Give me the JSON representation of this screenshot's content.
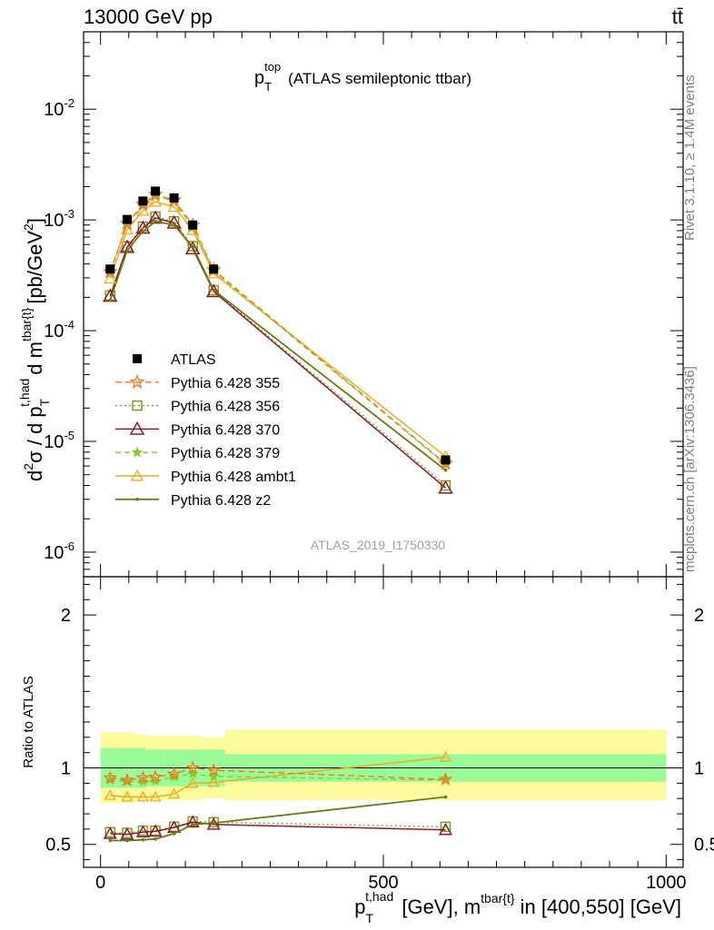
{
  "header": {
    "beam": "13000 GeV pp",
    "process": "tt̄"
  },
  "main_title": {
    "base": "p",
    "sub": "T",
    "sup": "top",
    "rest": "(ATLAS semileptonic ttbar)"
  },
  "side_labels": {
    "rivet": "Rivet 3.1.10, ≥ 1.4M events",
    "mcplots": "mcplots.cern.ch [arXiv:1306.3436]"
  },
  "analysis_id": "ATLAS_2019_I1750330",
  "colors": {
    "data": "#000000",
    "p355": "#ff6f1e",
    "p356": "#7d9e1e",
    "p370": "#8b1a2a",
    "p379": "#7ecf2e",
    "ambt1": "#f5a81e",
    "z2": "#6f7a14",
    "band_inner": "#98fb98",
    "band_outer": "#fbfb9b"
  },
  "chart_data": [
    {
      "type": "scatter",
      "name": "main",
      "title": "p_T^top (ATLAS semileptonic ttbar)",
      "xlabel": "p_T^{t,had} [GeV], m^{tbar{t}} in [400,550] [GeV]",
      "ylabel": "d²σ / d p_T^{t,had} d m^{tbar{t}} [pb/GeV²]",
      "ylabel_parts": {
        "a": "d",
        "a_sup": "2",
        "b": "σ / d p",
        "b_sub": "T",
        "b_sup": "t,had",
        "c": "d m",
        "c_sup": "tbar{t}",
        "d": "[pb/GeV",
        "d_sup": "2",
        "e": "]"
      },
      "xlim": [
        -30,
        1030
      ],
      "ylim": [
        6e-07,
        0.05
      ],
      "yscale": "log",
      "y_ticks": [
        {
          "base": "10",
          "exp": "-6",
          "value": 1e-06
        },
        {
          "base": "10",
          "exp": "-5",
          "value": 1e-05
        },
        {
          "base": "10",
          "exp": "-4",
          "value": 0.0001
        },
        {
          "base": "10",
          "exp": "-3",
          "value": 0.001
        },
        {
          "base": "10",
          "exp": "-2",
          "value": 0.01
        }
      ],
      "x": [
        17,
        47,
        75,
        97,
        130,
        163,
        200,
        610
      ],
      "series": [
        {
          "name": "ATLAS",
          "key": "data",
          "values": [
            0.00036,
            0.00101,
            0.00148,
            0.00182,
            0.00158,
            0.0009,
            0.00036,
            6.8e-06
          ]
        },
        {
          "name": "Pythia 6.428 355",
          "key": "p355",
          "values": [
            0.00034,
            0.00093,
            0.00139,
            0.0017,
            0.00151,
            0.0009,
            0.000354,
            6.3e-06
          ]
        },
        {
          "name": "Pythia 6.428 356",
          "key": "p356",
          "values": [
            0.000208,
            0.000578,
            0.00087,
            0.00107,
            0.00097,
            0.00058,
            0.000232,
            4e-06
          ]
        },
        {
          "name": "Pythia 6.428 370",
          "key": "p370",
          "values": [
            0.000205,
            0.000567,
            0.000845,
            0.00104,
            0.00094,
            0.00055,
            0.000226,
            3.8e-06
          ]
        },
        {
          "name": "Pythia 6.428 379",
          "key": "p379",
          "values": [
            0.000332,
            0.00092,
            0.00134,
            0.00164,
            0.00148,
            0.00085,
            0.000344,
            6.2e-06
          ]
        },
        {
          "name": "Pythia 6.428 ambt1",
          "key": "ambt1",
          "values": [
            0.000295,
            0.00082,
            0.00121,
            0.00146,
            0.00131,
            0.00081,
            0.000328,
            7.3e-06
          ]
        },
        {
          "name": "Pythia 6.428 z2",
          "key": "z2",
          "values": [
            0.000189,
            0.000529,
            0.00079,
            0.00097,
            0.0009,
            0.00057,
            0.000232,
            5.5e-06
          ]
        }
      ]
    },
    {
      "type": "scatter",
      "name": "ratio",
      "ylabel": "Ratio to ATLAS",
      "xlim": [
        -30,
        1030
      ],
      "ylim": [
        0.35,
        2.25
      ],
      "y_ticks": [
        "0.5",
        "1",
        "2"
      ],
      "x_ticks": [
        "0",
        "500",
        "1000"
      ],
      "x": [
        17,
        47,
        75,
        97,
        130,
        163,
        200,
        610
      ],
      "bands": {
        "edges": [
          0,
          30,
          60,
          80,
          110,
          150,
          180,
          220,
          1000
        ],
        "inner_lo": [
          0.87,
          0.87,
          0.87,
          0.88,
          0.88,
          0.88,
          0.88,
          0.91
        ],
        "inner_hi": [
          1.13,
          1.13,
          1.13,
          1.12,
          1.12,
          1.12,
          1.12,
          1.09
        ],
        "outer_lo": [
          0.77,
          0.77,
          0.78,
          0.79,
          0.79,
          0.79,
          0.8,
          0.79
        ],
        "outer_hi": [
          1.23,
          1.23,
          1.22,
          1.21,
          1.21,
          1.21,
          1.2,
          1.25
        ]
      },
      "series": [
        {
          "name": "Pythia 6.428 355",
          "key": "p355",
          "values": [
            0.935,
            0.92,
            0.935,
            0.94,
            0.96,
            1.0,
            0.985,
            0.925
          ]
        },
        {
          "name": "Pythia 6.428 356",
          "key": "p356",
          "values": [
            0.58,
            0.575,
            0.59,
            0.59,
            0.615,
            0.65,
            0.645,
            0.615
          ]
        },
        {
          "name": "Pythia 6.428 370",
          "key": "p370",
          "values": [
            0.57,
            0.565,
            0.58,
            0.585,
            0.61,
            0.645,
            0.63,
            0.595
          ]
        },
        {
          "name": "Pythia 6.428 379",
          "key": "p379",
          "values": [
            0.92,
            0.91,
            0.91,
            0.915,
            0.94,
            0.96,
            0.945,
            0.92
          ]
        },
        {
          "name": "Pythia 6.428 ambt1",
          "key": "ambt1",
          "values": [
            0.82,
            0.81,
            0.81,
            0.81,
            0.83,
            0.9,
            0.905,
            1.07
          ]
        },
        {
          "name": "Pythia 6.428 z2",
          "key": "z2",
          "values": [
            0.525,
            0.525,
            0.53,
            0.535,
            0.57,
            0.63,
            0.64,
            0.81
          ]
        }
      ]
    }
  ]
}
